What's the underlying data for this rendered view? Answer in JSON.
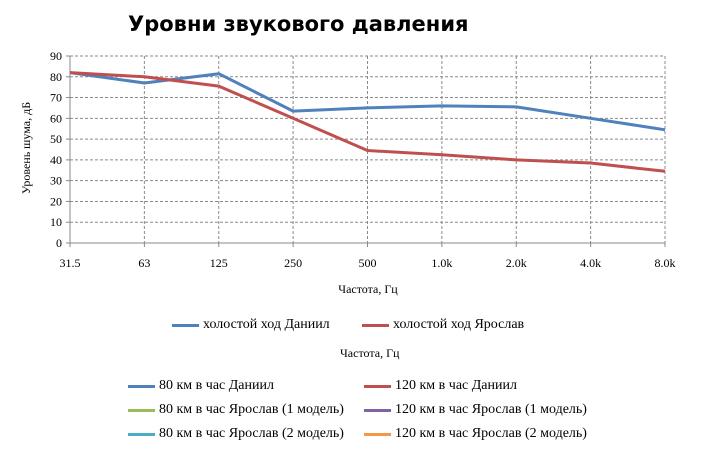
{
  "chart_data": {
    "type": "line",
    "title": "Уровни звукового давления",
    "xlabel": "Частота, Гц",
    "ylabel": "Уровень шума, дБ",
    "categories": [
      "31.5",
      "63",
      "125",
      "250",
      "500",
      "1.0k",
      "2.0k",
      "4.0k",
      "8.0k"
    ],
    "ylim": [
      0,
      90
    ],
    "yticks": [
      0,
      10,
      20,
      30,
      40,
      50,
      60,
      70,
      80,
      90
    ],
    "grid": true,
    "series": [
      {
        "name": "холостой ход Даниил",
        "color": "#4F81BD",
        "values": [
          82,
          77,
          81.5,
          63.5,
          65,
          66,
          65.5,
          60,
          54.5
        ]
      },
      {
        "name": "холостой ход Ярослав",
        "color": "#C0504D",
        "values": [
          82,
          80,
          75.5,
          60,
          44.5,
          42.5,
          40,
          38.5,
          34.5
        ]
      }
    ]
  },
  "second_legend": {
    "xlabel": "Частота, Гц",
    "items": [
      {
        "name": "80 км в час Даниил",
        "color": "#4F81BD"
      },
      {
        "name": "120 км в час Даниил",
        "color": "#C0504D"
      },
      {
        "name": "80 км в час Ярослав (1 модель)",
        "color": "#9BBB59"
      },
      {
        "name": "120 км в час Ярослав (1 модель)",
        "color": "#8064A2"
      },
      {
        "name": "80 км в час Ярослав (2 модель)",
        "color": "#4BACC6"
      },
      {
        "name": "120 км в час Ярослав (2 модель)",
        "color": "#F79646"
      }
    ]
  }
}
